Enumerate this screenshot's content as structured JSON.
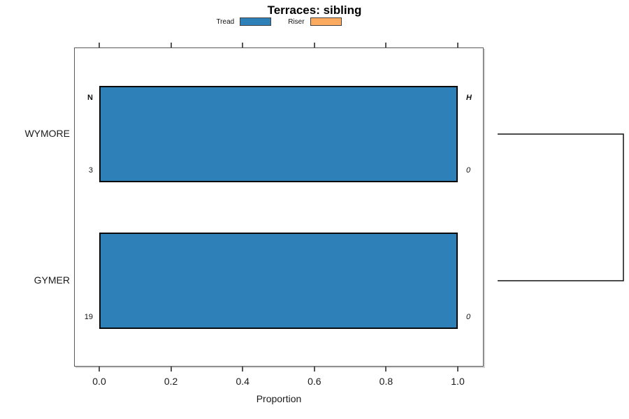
{
  "title": "Terraces: sibling",
  "legend": {
    "items": [
      {
        "label": "Tread",
        "color": "#2E81B8"
      },
      {
        "label": "Riser",
        "color": "#FBAA60"
      }
    ]
  },
  "chart_data": {
    "type": "bar",
    "orientation": "horizontal",
    "title": "Terraces: sibling",
    "categories": [
      "WYMORE",
      "GYMER"
    ],
    "series": [
      {
        "name": "Tread",
        "color": "#2E81B8",
        "values": [
          1.0,
          1.0
        ]
      },
      {
        "name": "Riser",
        "color": "#FBAA60",
        "values": [
          0.0,
          0.0
        ]
      }
    ],
    "xlabel": "Proportion",
    "xlim": [
      0,
      1
    ],
    "x_ticks": [
      0.0,
      0.2,
      0.4,
      0.6,
      0.8,
      1.0
    ],
    "x_tick_labels": [
      "0.0",
      "0.2",
      "0.4",
      "0.6",
      "0.8",
      "1.0"
    ],
    "axis_tick_sides": "top-and-bottom",
    "legend_position": "top-center",
    "annotations": {
      "left_header": "N",
      "right_header": "H",
      "left_values": [
        "3",
        "19"
      ],
      "right_values": [
        "0",
        "0"
      ]
    },
    "dendrogram": {
      "linked_categories": [
        "WYMORE",
        "GYMER"
      ]
    }
  }
}
